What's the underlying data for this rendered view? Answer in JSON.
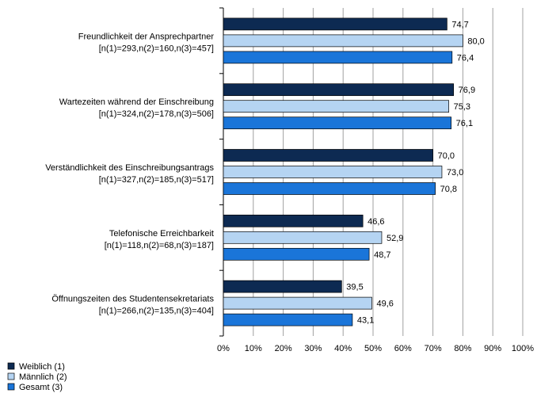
{
  "chart_data": {
    "type": "bar",
    "orientation": "horizontal",
    "categories": [
      {
        "label": "Freundlichkeit der Ansprechpartner",
        "n": "[n(1)=293,n(2)=160,n(3)=457]"
      },
      {
        "label": "Wartezeiten während der Einschreibung",
        "n": "[n(1)=324,n(2)=178,n(3)=506]"
      },
      {
        "label": "Verständlichkeit des Einschreibungsantrags",
        "n": "[n(1)=327,n(2)=185,n(3)=517]"
      },
      {
        "label": "Telefonische Erreichbarkeit",
        "n": "[n(1)=118,n(2)=68,n(3)=187]"
      },
      {
        "label": "Öffnungszeiten des Studentensekretariats",
        "n": "[n(1)=266,n(2)=135,n(3)=404]"
      }
    ],
    "series": [
      {
        "name": "Weiblich (1)",
        "color": "#0d2a52",
        "values": [
          74.7,
          76.9,
          70.0,
          46.6,
          39.5
        ],
        "labels": [
          "74,7",
          "76,9",
          "70,0",
          "46,6",
          "39,5"
        ]
      },
      {
        "name": "Männlich (2)",
        "color": "#b5d4f2",
        "values": [
          80.0,
          75.3,
          73.0,
          52.9,
          49.6
        ],
        "labels": [
          "80,0",
          "75,3",
          "73,0",
          "52,9",
          "49,6"
        ]
      },
      {
        "name": "Gesamt (3)",
        "color": "#1a75d9",
        "values": [
          76.4,
          76.1,
          70.8,
          48.7,
          43.1
        ],
        "labels": [
          "76,4",
          "76,1",
          "70,8",
          "48,7",
          "43,1"
        ]
      }
    ],
    "xlim": [
      0,
      100
    ],
    "x_ticks": [
      "0%",
      "10%",
      "20%",
      "30%",
      "40%",
      "50%",
      "60%",
      "70%",
      "80%",
      "90%",
      "100%"
    ],
    "grid": true,
    "legend_position": "bottom-left"
  }
}
